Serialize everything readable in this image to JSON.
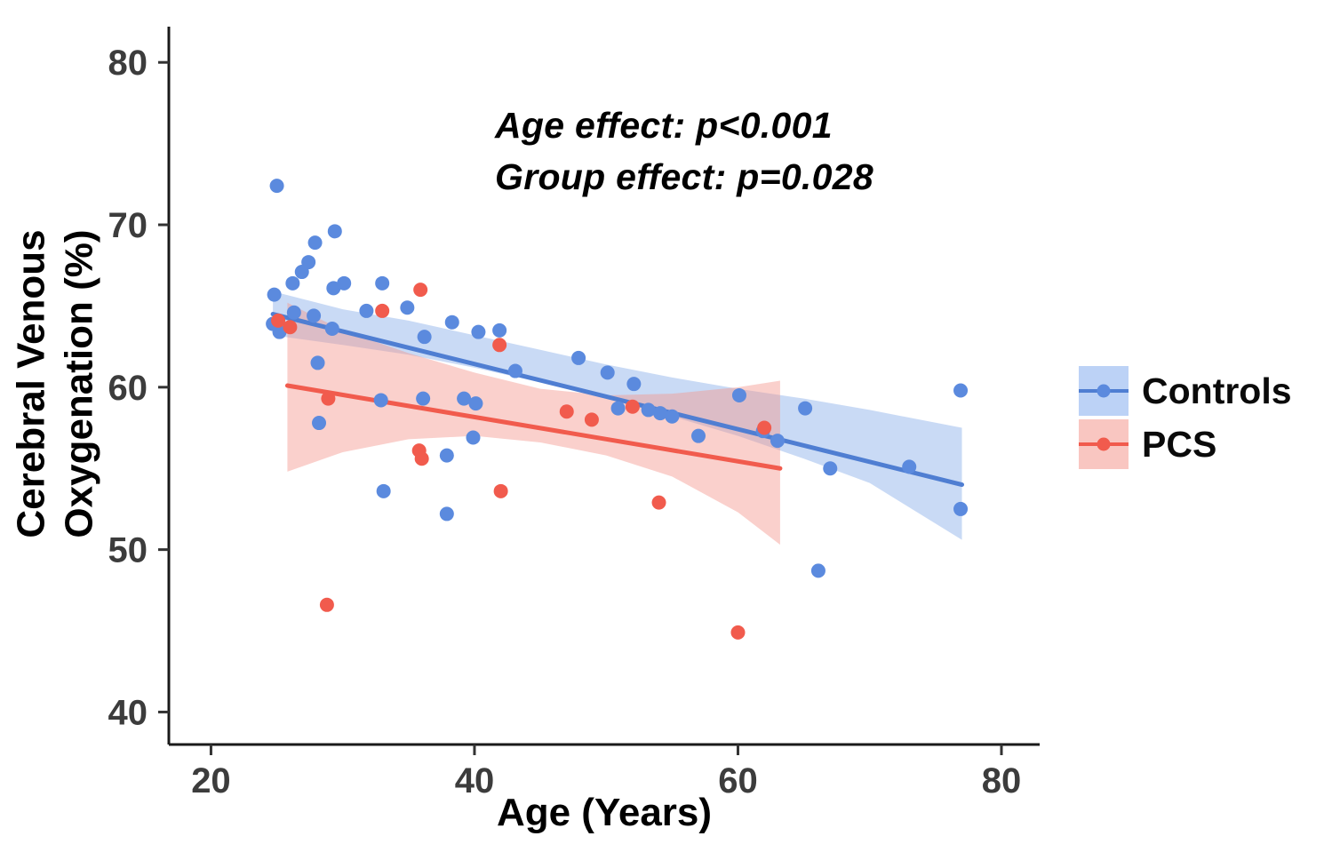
{
  "chart_data": {
    "type": "scatter",
    "title": "",
    "xlabel": "Age (Years)",
    "ylabel": "Cerebral Venous\nOxygenation (%)",
    "annotation": {
      "line1": "Age effect: p<0.001",
      "line2": "Group effect: p=0.028"
    },
    "xaxis": {
      "min": 16.8,
      "max": 82.9,
      "ticks": [
        20,
        40,
        60,
        80
      ]
    },
    "yaxis": {
      "min": 38.0,
      "max": 82.2,
      "ticks": [
        40,
        50,
        60,
        70,
        80
      ]
    },
    "grid": "off",
    "legend_position": "right",
    "axis_color": "#1a1a1a",
    "tick_label_color": "#3c3c3c",
    "series": [
      {
        "name": "Controls",
        "color": "#5b8ade",
        "line_color": "#4f7ed2",
        "band_color": "#88ade8",
        "band_opacity": 0.45,
        "key_fill": "#bcd2f6",
        "points": [
          [
            25,
            72.4
          ],
          [
            27.9,
            68.9
          ],
          [
            29.4,
            69.6
          ],
          [
            27.4,
            67.7
          ],
          [
            26.9,
            67.1
          ],
          [
            26.2,
            66.4
          ],
          [
            29.3,
            66.1
          ],
          [
            30.1,
            66.4
          ],
          [
            33,
            66.4
          ],
          [
            24.8,
            65.7
          ],
          [
            24.7,
            63.9
          ],
          [
            25.2,
            63.4
          ],
          [
            26.3,
            64.6
          ],
          [
            27.8,
            64.4
          ],
          [
            29.2,
            63.6
          ],
          [
            31.8,
            64.7
          ],
          [
            34.9,
            64.9
          ],
          [
            36.2,
            63.1
          ],
          [
            38.3,
            64
          ],
          [
            40.3,
            63.4
          ],
          [
            41.9,
            63.5
          ],
          [
            28.1,
            61.5
          ],
          [
            28.2,
            57.8
          ],
          [
            32.9,
            59.2
          ],
          [
            36.1,
            59.3
          ],
          [
            37.9,
            55.8
          ],
          [
            39.2,
            59.3
          ],
          [
            40.1,
            59
          ],
          [
            39.9,
            56.9
          ],
          [
            43.1,
            61
          ],
          [
            47.9,
            61.8
          ],
          [
            50.1,
            60.9
          ],
          [
            50.9,
            58.7
          ],
          [
            52.1,
            60.2
          ],
          [
            53.2,
            58.6
          ],
          [
            54.1,
            58.4
          ],
          [
            55,
            58.2
          ],
          [
            57,
            57
          ],
          [
            60.1,
            59.5
          ],
          [
            61.9,
            57.3
          ],
          [
            63,
            56.7
          ],
          [
            65.1,
            58.7
          ],
          [
            67,
            55
          ],
          [
            66.1,
            48.7
          ],
          [
            33.1,
            53.6
          ],
          [
            37.9,
            52.2
          ],
          [
            73,
            55.1
          ],
          [
            76.9,
            59.8
          ],
          [
            76.9,
            52.5
          ]
        ],
        "trend": [
          [
            24.7,
            64.5
          ],
          [
            77,
            54.0
          ]
        ],
        "band": [
          [
            24.7,
            63.2,
            65.9
          ],
          [
            30,
            62.6,
            64.8
          ],
          [
            35,
            62,
            64.1
          ],
          [
            40,
            61.2,
            63.2
          ],
          [
            45,
            60.3,
            62.3
          ],
          [
            50,
            59.3,
            61.4
          ],
          [
            55,
            58.2,
            60.6
          ],
          [
            60,
            57,
            59.9
          ],
          [
            65,
            55.6,
            59.3
          ],
          [
            70,
            54.1,
            58.6
          ],
          [
            77,
            50.6,
            57.5
          ]
        ]
      },
      {
        "name": "PCS",
        "color": "#f15b4d",
        "line_color": "#f15b4d",
        "band_color": "#f4978e",
        "band_opacity": 0.45,
        "key_fill": "#f9c6c1",
        "points": [
          [
            25.1,
            64.1
          ],
          [
            26,
            63.7
          ],
          [
            28.9,
            59.3
          ],
          [
            28.8,
            46.6
          ],
          [
            33,
            64.7
          ],
          [
            35.9,
            66
          ],
          [
            35.8,
            56.1
          ],
          [
            36,
            55.6
          ],
          [
            41.9,
            62.6
          ],
          [
            42,
            53.6
          ],
          [
            47,
            58.5
          ],
          [
            48.9,
            58
          ],
          [
            52,
            58.8
          ],
          [
            54,
            52.9
          ],
          [
            60,
            44.9
          ],
          [
            62,
            57.5
          ]
        ],
        "trend": [
          [
            25.8,
            60.1
          ],
          [
            63.2,
            55.0
          ]
        ],
        "band": [
          [
            25.8,
            54.8,
            65.2
          ],
          [
            30,
            56,
            63.5
          ],
          [
            35,
            56.8,
            62.1
          ],
          [
            40,
            57,
            60.9
          ],
          [
            45,
            56.6,
            59.9
          ],
          [
            50,
            55.8,
            59.5
          ],
          [
            55,
            54.5,
            59.6
          ],
          [
            60,
            52.3,
            60
          ],
          [
            63.2,
            50.3,
            60.4
          ]
        ]
      }
    ]
  }
}
